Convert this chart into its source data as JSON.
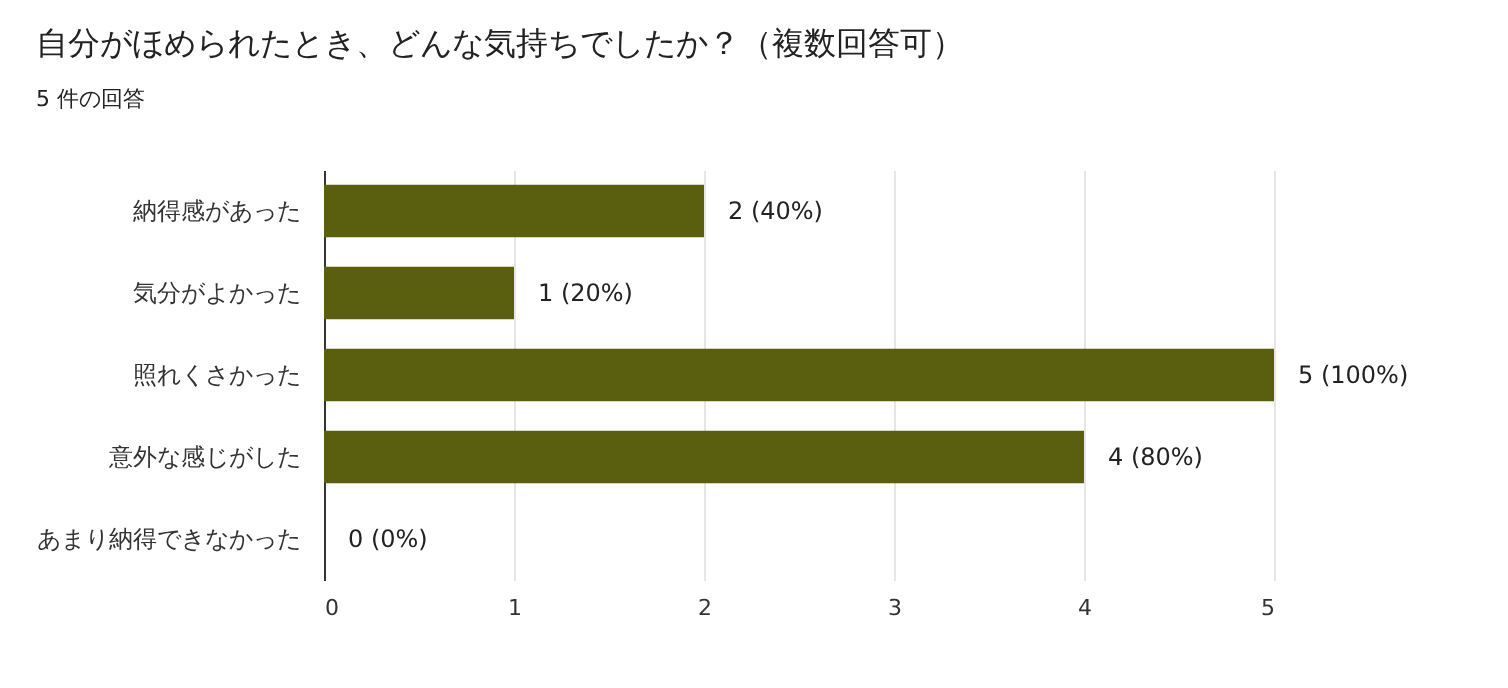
{
  "chart_data": {
    "type": "bar",
    "orientation": "horizontal",
    "title": "自分がほめられたとき、どんな気持ちでしたか？（複数回答可）",
    "subtitle": "5 件の回答",
    "categories": [
      "納得感があった",
      "気分がよかった",
      "照れくさかった",
      "意外な感じがした",
      "あまり納得できなかった"
    ],
    "values": [
      2,
      1,
      5,
      4,
      0
    ],
    "value_labels": [
      "2 (40%)",
      "1 (20%)",
      "5 (100%)",
      "4 (80%)",
      "0 (0%)"
    ],
    "color": "#5a5f10",
    "xlim": [
      0,
      5
    ],
    "xticks": [
      0,
      1,
      2,
      3,
      4,
      5
    ],
    "grid": "x"
  }
}
